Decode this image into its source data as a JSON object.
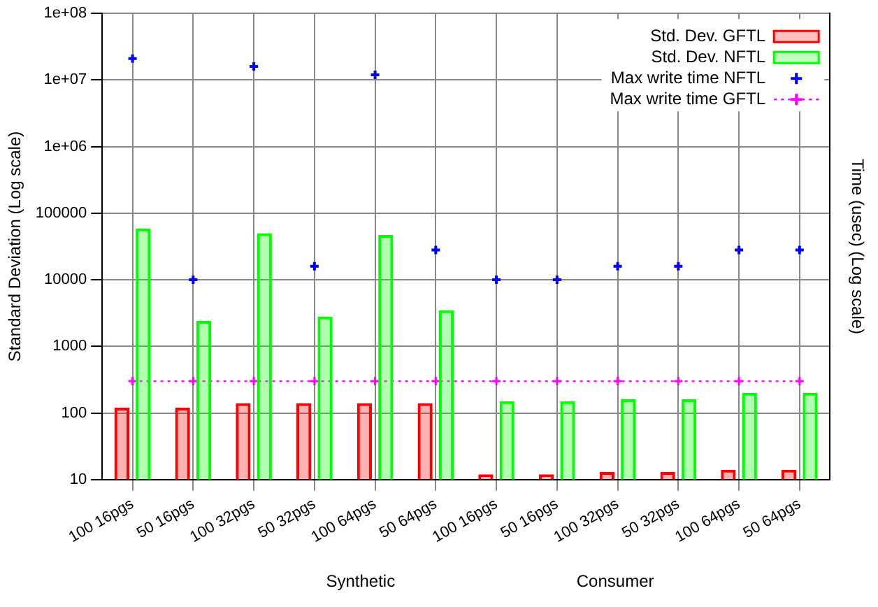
{
  "chart_data": {
    "type": "bar",
    "ylabel": "Standard Deviation (Log scale)",
    "y2label": "Time (usec) (Log scale)",
    "categories": [
      "100 16pgs",
      "50 16pgs",
      "100 32pgs",
      "50 32pgs",
      "100 64pgs",
      "50 64pgs",
      "100 16pgs",
      "50 16pgs",
      "100 32pgs",
      "50 32pgs",
      "100 64pgs",
      "50 64pgs"
    ],
    "series": [
      {
        "name": "Std. Dev. GFTL",
        "color": "#ff0000",
        "values": [
          120,
          120,
          140,
          140,
          140,
          140,
          12,
          12,
          13,
          13,
          14,
          14
        ]
      },
      {
        "name": "Std. Dev. NFTL",
        "color": "#00ff00",
        "values": [
          59000,
          2400,
          50000,
          2800,
          47000,
          3500,
          150,
          150,
          160,
          160,
          200,
          200
        ]
      },
      {
        "name": "Max write time NFTL",
        "type": "scatter",
        "marker": "cross",
        "color": "#0000ff",
        "values": [
          21000000,
          10000,
          16000000,
          16000,
          12000000,
          28000,
          10000,
          10000,
          16000,
          16000,
          28000,
          28000
        ]
      },
      {
        "name": "Max write time GFTL",
        "type": "line",
        "marker": "cross",
        "line_style": "dotted",
        "color": "#ff00ff",
        "values": [
          300,
          300,
          300,
          300,
          300,
          300,
          300,
          300,
          300,
          300,
          300,
          300
        ]
      }
    ],
    "log": "y",
    "ylim": [
      10,
      100000000
    ],
    "yticks": [
      10,
      100,
      1000,
      10000,
      100000,
      {
        "value": 1000000,
        "label": "1e+06"
      },
      {
        "value": 10000000,
        "label": "1e+07"
      },
      {
        "value": 100000000,
        "label": "1e+08"
      }
    ],
    "grid": true,
    "legend": "top right",
    "annotations": [
      "Synthetic",
      "Consumer"
    ]
  }
}
